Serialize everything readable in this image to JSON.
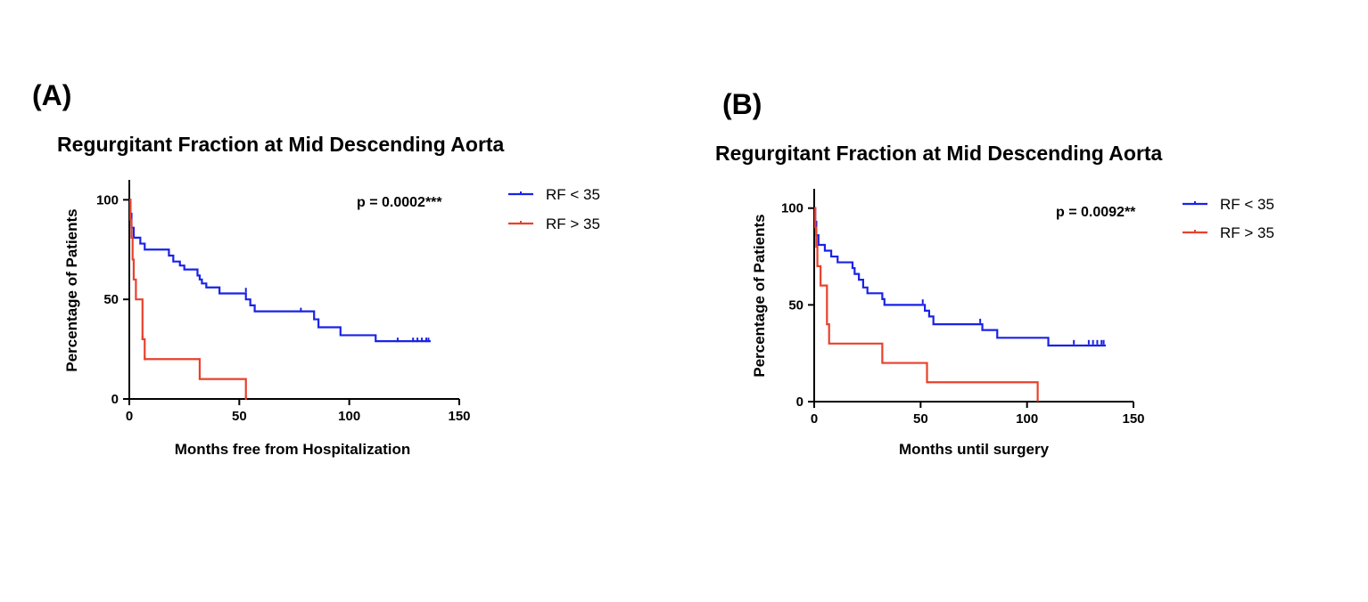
{
  "colors": {
    "blue": "#1a22e6",
    "red": "#e8412c",
    "axis": "#000000"
  },
  "chart_data": [
    {
      "type": "line",
      "subtype": "kaplan-meier step",
      "panel_label": "(A)",
      "title": "Regurgitant Fraction at Mid Descending Aorta",
      "xlabel": "Months free from Hospitalization",
      "ylabel": "Percentage of Patients",
      "xlim": [
        0,
        150
      ],
      "ylim": [
        0,
        110
      ],
      "xticks": [
        0,
        50,
        100,
        150
      ],
      "yticks": [
        0,
        50,
        100
      ],
      "annotation": "p = 0.0002***",
      "legend_position": "top-right-outside",
      "series": [
        {
          "name": "RF < 35",
          "color_key": "blue",
          "steps": [
            [
              0,
              100
            ],
            [
              0.5,
              93
            ],
            [
              1,
              86
            ],
            [
              2,
              81
            ],
            [
              5,
              78
            ],
            [
              7,
              75
            ],
            [
              18,
              72
            ],
            [
              20,
              69
            ],
            [
              23,
              67
            ],
            [
              25,
              65
            ],
            [
              31,
              62
            ],
            [
              32,
              60
            ],
            [
              33,
              58
            ],
            [
              35,
              56
            ],
            [
              41,
              53
            ],
            [
              53,
              50
            ],
            [
              55,
              47
            ],
            [
              57,
              44
            ],
            [
              84,
              40
            ],
            [
              86,
              36
            ],
            [
              96,
              32
            ],
            [
              112,
              29
            ],
            [
              137,
              29
            ]
          ],
          "censored": [
            [
              78,
              44
            ],
            [
              53,
              54
            ],
            [
              122,
              29
            ],
            [
              129,
              29
            ],
            [
              131,
              29
            ],
            [
              133,
              29
            ],
            [
              135,
              29
            ],
            [
              136,
              29
            ]
          ]
        },
        {
          "name": "RF > 35",
          "color_key": "red",
          "steps": [
            [
              0,
              100
            ],
            [
              0.5,
              90
            ],
            [
              1,
              81
            ],
            [
              1.5,
              70
            ],
            [
              2,
              60
            ],
            [
              3,
              50
            ],
            [
              6,
              30
            ],
            [
              7,
              20
            ],
            [
              32,
              10
            ],
            [
              53,
              0
            ]
          ],
          "censored": [
            [
              1,
              81
            ],
            [
              6,
              30
            ],
            [
              7,
              20
            ],
            [
              32,
              10
            ],
            [
              53,
              0
            ]
          ]
        }
      ]
    },
    {
      "type": "line",
      "subtype": "kaplan-meier step",
      "panel_label": "(B)",
      "title": "Regurgitant Fraction at Mid Descending Aorta",
      "xlabel": "Months until surgery",
      "ylabel": "Percentage of Patients",
      "xlim": [
        0,
        150
      ],
      "ylim": [
        0,
        110
      ],
      "xticks": [
        0,
        50,
        100,
        150
      ],
      "yticks": [
        0,
        50,
        100
      ],
      "annotation": "p = 0.0092**",
      "legend_position": "top-right-outside",
      "series": [
        {
          "name": "RF < 35",
          "color_key": "blue",
          "steps": [
            [
              0,
              100
            ],
            [
              0.5,
              93
            ],
            [
              1,
              86
            ],
            [
              2,
              81
            ],
            [
              5,
              78
            ],
            [
              8,
              75
            ],
            [
              11,
              72
            ],
            [
              18,
              69
            ],
            [
              19,
              66
            ],
            [
              21,
              63
            ],
            [
              23,
              59
            ],
            [
              25,
              56
            ],
            [
              32,
              53
            ],
            [
              33,
              50
            ],
            [
              52,
              47
            ],
            [
              54,
              44
            ],
            [
              56,
              40
            ],
            [
              79,
              37
            ],
            [
              86,
              33
            ],
            [
              110,
              29
            ],
            [
              137,
              29
            ]
          ],
          "censored": [
            [
              51,
              51
            ],
            [
              78,
              41
            ],
            [
              122,
              30
            ],
            [
              129,
              30
            ],
            [
              131,
              30
            ],
            [
              133,
              30
            ],
            [
              135,
              30
            ],
            [
              136,
              30
            ]
          ]
        },
        {
          "name": "RF > 35",
          "color_key": "red",
          "steps": [
            [
              0,
              100
            ],
            [
              0.5,
              90
            ],
            [
              1,
              80
            ],
            [
              1.5,
              70
            ],
            [
              3,
              60
            ],
            [
              6,
              40
            ],
            [
              7,
              30
            ],
            [
              32,
              20
            ],
            [
              53,
              10
            ],
            [
              105,
              0
            ]
          ],
          "censored": []
        }
      ]
    }
  ]
}
